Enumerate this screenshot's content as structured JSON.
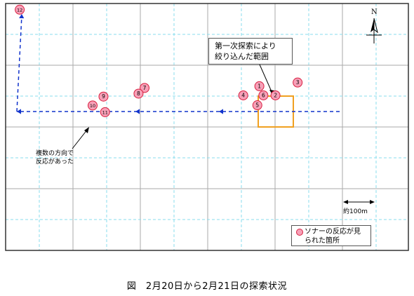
{
  "map": {
    "colors": {
      "frame": "#333333",
      "grid_solid": "#aaaaaa",
      "grid_dashed": "#88ddee",
      "track": "#1133cc",
      "point_fill": "#f7a0b8",
      "point_stroke": "#d82040",
      "search_box": "#f0a020"
    },
    "points": [
      {
        "label": "1",
        "x": 0.63,
        "y": 0.335
      },
      {
        "label": "2",
        "x": 0.67,
        "y": 0.372
      },
      {
        "label": "3",
        "x": 0.725,
        "y": 0.32
      },
      {
        "label": "4",
        "x": 0.59,
        "y": 0.372
      },
      {
        "label": "5",
        "x": 0.625,
        "y": 0.412
      },
      {
        "label": "6",
        "x": 0.64,
        "y": 0.372
      },
      {
        "label": "7",
        "x": 0.345,
        "y": 0.342
      },
      {
        "label": "8",
        "x": 0.33,
        "y": 0.365
      },
      {
        "label": "9",
        "x": 0.243,
        "y": 0.377
      },
      {
        "label": "10",
        "x": 0.216,
        "y": 0.413
      },
      {
        "label": "11",
        "x": 0.247,
        "y": 0.44
      },
      {
        "label": "12",
        "x": 0.035,
        "y": 0.025
      }
    ]
  },
  "callout": {
    "line1": "第一次探索により",
    "line2": "絞り込んだ範囲"
  },
  "annotation": {
    "line1": "複数の方向で",
    "line2": "反応があった"
  },
  "scale_label": "約100m",
  "north_label": "N",
  "legend": {
    "line1": "ソナーの反応が見",
    "line2": "られた箇所"
  },
  "caption": "図　2月20日から2月21日の探索状況"
}
